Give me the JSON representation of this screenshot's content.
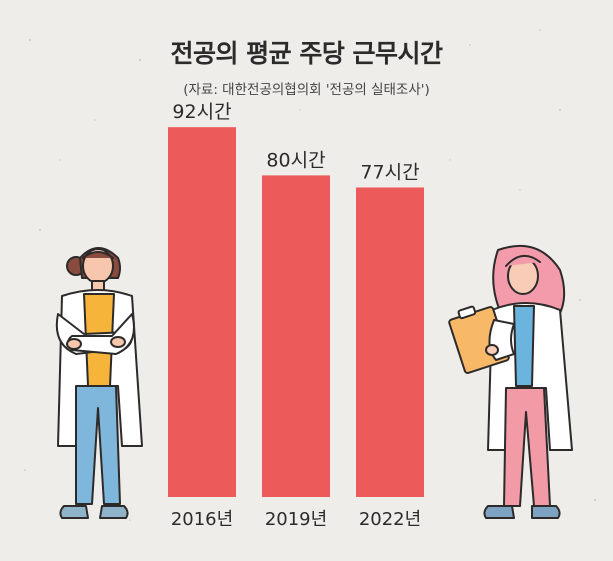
{
  "title": "전공의 평균 주당 근무시간",
  "subtitle": "(자료: 대한전공의협의회 '전공의 실태조사')",
  "colors": {
    "bar": "#ec5a5a",
    "background": "#efedea",
    "text": "#2b2b2b"
  },
  "chart_data": {
    "type": "bar",
    "title": "전공의 평균 주당 근무시간",
    "categories": [
      "2016년",
      "2019년",
      "2022년"
    ],
    "values": [
      92,
      80,
      77
    ],
    "value_labels": [
      "92시간",
      "80시간",
      "77시간"
    ],
    "unit": "시간",
    "xlabel": "",
    "ylabel": "",
    "ylim": [
      0,
      100
    ],
    "grid": false,
    "legend": "none"
  },
  "illustrations": {
    "left": "doctor-arms-crossed-illustration",
    "right": "doctor-clipboard-illustration"
  }
}
